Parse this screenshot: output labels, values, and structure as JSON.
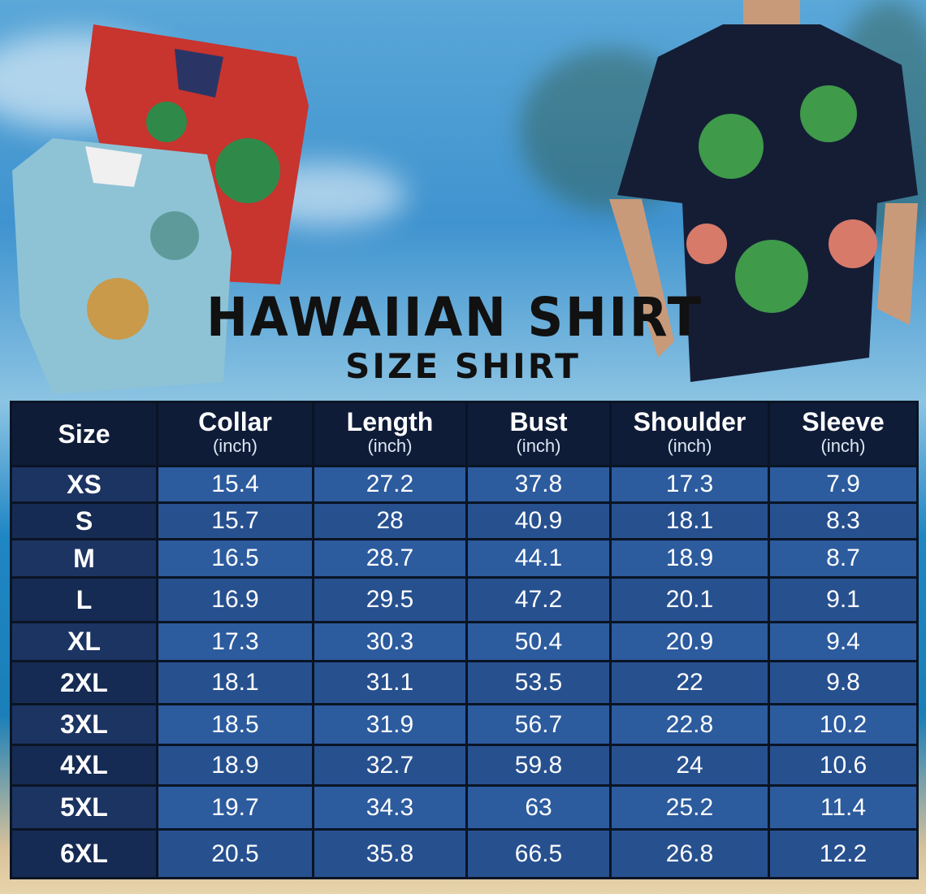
{
  "title": "HAWAIIAN SHIRT",
  "subtitle": "SIZE SHIRT",
  "colors": {
    "header_bg": "#0f1c38",
    "size_cell_bg": "#1c3462",
    "value_cell_bg": "#2c5b9e",
    "title_text": "#111111"
  },
  "table": {
    "unit": "(inch)",
    "columns": [
      "Size",
      "Collar",
      "Length",
      "Bust",
      "Shoulder",
      "Sleeve"
    ],
    "rows": [
      [
        "XS",
        "15.4",
        "27.2",
        "37.8",
        "17.3",
        "7.9"
      ],
      [
        "S",
        "15.7",
        "28",
        "40.9",
        "18.1",
        "8.3"
      ],
      [
        "M",
        "16.5",
        "28.7",
        "44.1",
        "18.9",
        "8.7"
      ],
      [
        "L",
        "16.9",
        "29.5",
        "47.2",
        "20.1",
        "9.1"
      ],
      [
        "XL",
        "17.3",
        "30.3",
        "50.4",
        "20.9",
        "9.4"
      ],
      [
        "2XL",
        "18.1",
        "31.1",
        "53.5",
        "22",
        "9.8"
      ],
      [
        "3XL",
        "18.5",
        "31.9",
        "56.7",
        "22.8",
        "10.2"
      ],
      [
        "4XL",
        "18.9",
        "32.7",
        "59.8",
        "24",
        "10.6"
      ],
      [
        "5XL",
        "19.7",
        "34.3",
        "63",
        "25.2",
        "11.4"
      ],
      [
        "6XL",
        "20.5",
        "35.8",
        "66.5",
        "26.8",
        "12.2"
      ]
    ]
  }
}
